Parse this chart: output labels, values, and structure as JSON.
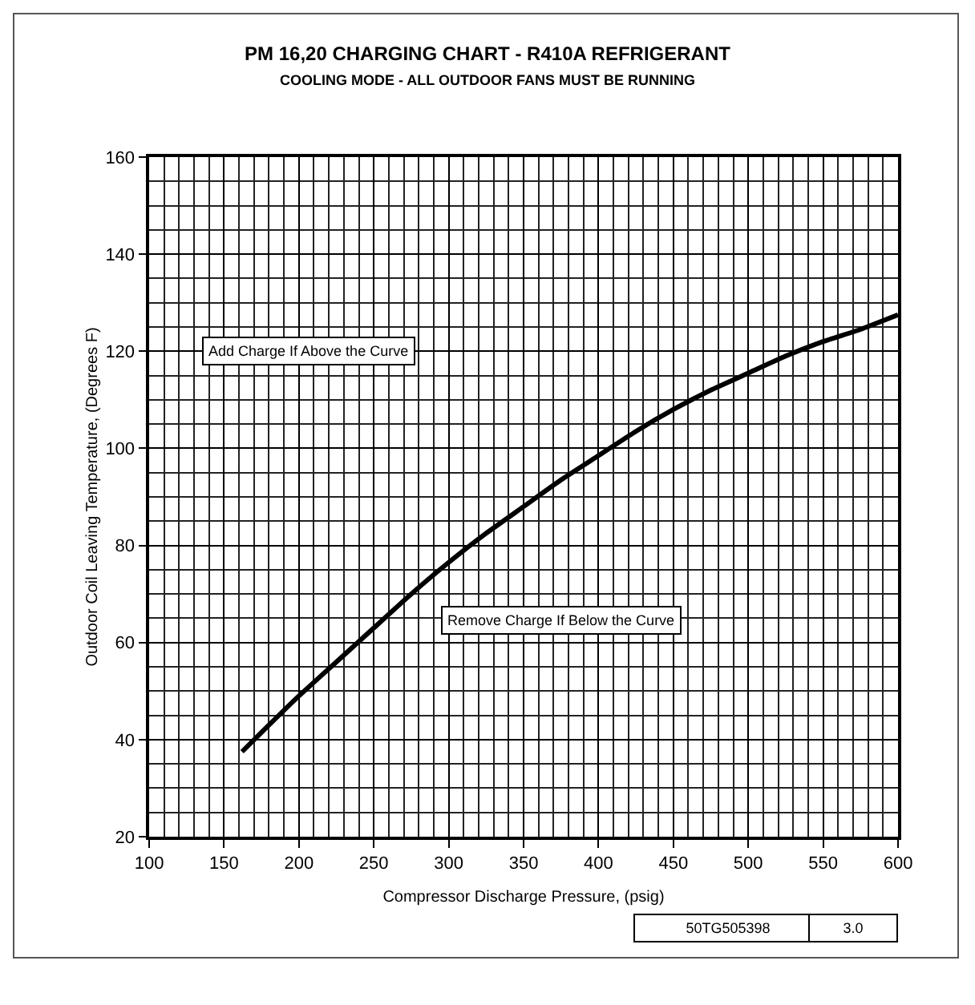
{
  "chart_data": {
    "type": "line",
    "title": "PM 16,20 CHARGING CHART - R410A REFRIGERANT",
    "subtitle": "COOLING MODE - ALL OUTDOOR FANS MUST BE RUNNING",
    "xlabel": "Compressor Discharge Pressure, (psig)",
    "ylabel": "Outdoor Coil Leaving Temperature, (Degrees F)",
    "x": [
      162,
      175,
      200,
      225,
      250,
      275,
      300,
      325,
      350,
      375,
      400,
      425,
      450,
      475,
      500,
      525,
      550,
      575,
      600
    ],
    "series": [
      {
        "color": "#000000",
        "values": [
          37.5,
          41.5,
          49,
          56,
          63,
          70,
          76.5,
          82.5,
          88,
          93.5,
          98.5,
          103.5,
          108,
          112,
          115.5,
          119,
          122,
          124.5,
          127.5
        ]
      }
    ],
    "xlim": [
      100,
      600
    ],
    "xticks": [
      100,
      150,
      200,
      250,
      300,
      350,
      400,
      450,
      500,
      550,
      600
    ],
    "ylim": [
      20,
      160
    ],
    "yticks": [
      20,
      40,
      60,
      80,
      100,
      120,
      140,
      160
    ],
    "grid": true,
    "marker": "none",
    "line_style": "solid",
    "annotations": [
      "Add Charge If Above the Curve",
      "Remove Charge If Below the Curve",
      "50TG505398",
      "3.0"
    ]
  }
}
